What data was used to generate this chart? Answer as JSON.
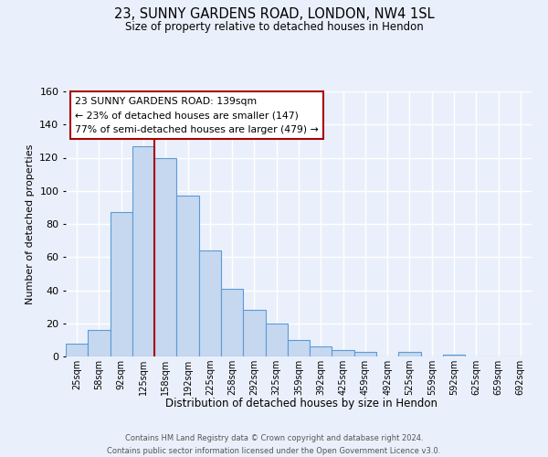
{
  "title": "23, SUNNY GARDENS ROAD, LONDON, NW4 1SL",
  "subtitle": "Size of property relative to detached houses in Hendon",
  "xlabel": "Distribution of detached houses by size in Hendon",
  "ylabel": "Number of detached properties",
  "categories": [
    "25sqm",
    "58sqm",
    "92sqm",
    "125sqm",
    "158sqm",
    "192sqm",
    "225sqm",
    "258sqm",
    "292sqm",
    "325sqm",
    "359sqm",
    "392sqm",
    "425sqm",
    "459sqm",
    "492sqm",
    "525sqm",
    "559sqm",
    "592sqm",
    "625sqm",
    "659sqm",
    "692sqm"
  ],
  "values": [
    8,
    16,
    87,
    127,
    120,
    97,
    64,
    41,
    28,
    20,
    10,
    6,
    4,
    3,
    0,
    3,
    0,
    1,
    0,
    0,
    0
  ],
  "bar_color": "#c5d8f0",
  "bar_edge_color": "#5b9bd5",
  "background_color": "#eaf0fb",
  "plot_bg_color": "#eaf0fb",
  "grid_color": "#ffffff",
  "vline_color": "#aa0000",
  "annotation_title": "23 SUNNY GARDENS ROAD: 139sqm",
  "annotation_line1": "← 23% of detached houses are smaller (147)",
  "annotation_line2": "77% of semi-detached houses are larger (479) →",
  "annotation_box_color": "#ffffff",
  "annotation_border_color": "#aa0000",
  "ylim": [
    0,
    160
  ],
  "yticks": [
    0,
    20,
    40,
    60,
    80,
    100,
    120,
    140,
    160
  ],
  "footer_line1": "Contains HM Land Registry data © Crown copyright and database right 2024.",
  "footer_line2": "Contains public sector information licensed under the Open Government Licence v3.0."
}
